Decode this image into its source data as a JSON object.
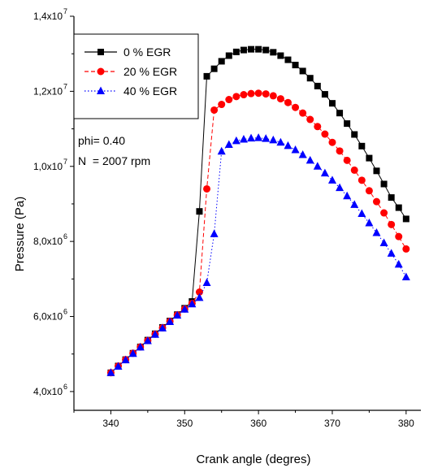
{
  "chart_data": {
    "type": "line",
    "title": "",
    "xlabel": "Crank angle (degres)",
    "ylabel": "Pressure (Pa)",
    "xlim": [
      335,
      382
    ],
    "ylim": [
      3500000,
      14000000
    ],
    "x_ticks": [
      340,
      350,
      360,
      370,
      380
    ],
    "y_ticks": [
      {
        "value": 4000000,
        "mantissa": "4,0x10",
        "exp": "6"
      },
      {
        "value": 6000000,
        "mantissa": "6,0x10",
        "exp": "6"
      },
      {
        "value": 8000000,
        "mantissa": "8,0x10",
        "exp": "6"
      },
      {
        "value": 10000000,
        "mantissa": "1,0x10",
        "exp": "7"
      },
      {
        "value": 12000000,
        "mantissa": "1,2x10",
        "exp": "7"
      },
      {
        "value": 14000000,
        "mantissa": "1,4x10",
        "exp": "7"
      }
    ],
    "grid": false,
    "legend_position": "top-left",
    "annotations": [
      "phi= 0.40",
      "N  = 2007 rpm"
    ],
    "series": [
      {
        "name": "0 % EGR",
        "color": "#000000",
        "marker": "square",
        "line": "solid",
        "x": [
          340,
          341,
          342,
          343,
          344,
          345,
          346,
          347,
          348,
          349,
          350,
          351,
          352,
          353,
          354,
          355,
          356,
          357,
          358,
          359,
          360,
          361,
          362,
          363,
          364,
          365,
          366,
          367,
          368,
          369,
          370,
          371,
          372,
          373,
          374,
          375,
          376,
          377,
          378,
          379,
          380
        ],
        "y": [
          4500000,
          4680000,
          4850000,
          5020000,
          5190000,
          5370000,
          5540000,
          5710000,
          5880000,
          6050000,
          6220000,
          6400000,
          8800000,
          12400000,
          12600000,
          12800000,
          12950000,
          13050000,
          13100000,
          13120000,
          13120000,
          13100000,
          13040000,
          12950000,
          12840000,
          12700000,
          12540000,
          12350000,
          12140000,
          11920000,
          11680000,
          11420000,
          11140000,
          10850000,
          10540000,
          10220000,
          9880000,
          9530000,
          9170000,
          8900000,
          8600000
        ]
      },
      {
        "name": "20 % EGR",
        "color": "#ff0000",
        "marker": "circle",
        "line": "dashed",
        "x": [
          340,
          341,
          342,
          343,
          344,
          345,
          346,
          347,
          348,
          349,
          350,
          351,
          352,
          353,
          354,
          355,
          356,
          357,
          358,
          359,
          360,
          361,
          362,
          363,
          364,
          365,
          366,
          367,
          368,
          369,
          370,
          371,
          372,
          373,
          374,
          375,
          376,
          377,
          378,
          379,
          380
        ],
        "y": [
          4500000,
          4680000,
          4850000,
          5020000,
          5190000,
          5360000,
          5530000,
          5700000,
          5870000,
          6040000,
          6200000,
          6350000,
          6650000,
          9400000,
          11500000,
          11650000,
          11780000,
          11860000,
          11910000,
          11940000,
          11950000,
          11930000,
          11880000,
          11800000,
          11700000,
          11570000,
          11420000,
          11250000,
          11060000,
          10860000,
          10640000,
          10410000,
          10160000,
          9900000,
          9630000,
          9350000,
          9060000,
          8760000,
          8450000,
          8130000,
          7800000
        ]
      },
      {
        "name": "40 % EGR",
        "color": "#0000ff",
        "marker": "triangle",
        "line": "dotted",
        "x": [
          340,
          341,
          342,
          343,
          344,
          345,
          346,
          347,
          348,
          349,
          350,
          351,
          352,
          353,
          354,
          355,
          356,
          357,
          358,
          359,
          360,
          361,
          362,
          363,
          364,
          365,
          366,
          367,
          368,
          369,
          370,
          371,
          372,
          373,
          374,
          375,
          376,
          377,
          378,
          379,
          380
        ],
        "y": [
          4500000,
          4670000,
          4840000,
          5010000,
          5180000,
          5350000,
          5520000,
          5690000,
          5860000,
          6030000,
          6190000,
          6330000,
          6500000,
          6900000,
          8200000,
          10400000,
          10580000,
          10680000,
          10720000,
          10750000,
          10760000,
          10740000,
          10700000,
          10640000,
          10550000,
          10440000,
          10310000,
          10160000,
          10000000,
          9820000,
          9630000,
          9430000,
          9210000,
          8980000,
          8740000,
          8490000,
          8230000,
          7960000,
          7680000,
          7390000,
          7050000
        ]
      }
    ]
  }
}
